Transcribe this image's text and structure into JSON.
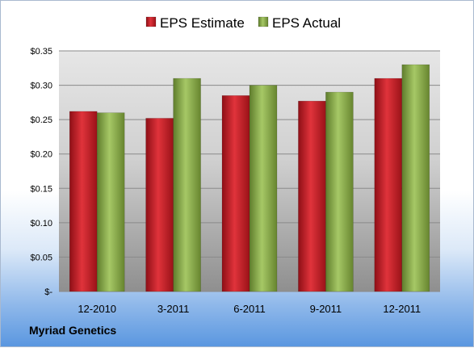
{
  "company_label": "Myriad Genetics",
  "chart_data": {
    "type": "bar",
    "categories": [
      "12-2010",
      "3-2011",
      "6-2011",
      "9-2011",
      "12-2011"
    ],
    "series": [
      {
        "name": "EPS Estimate",
        "values": [
          0.262,
          0.252,
          0.285,
          0.277,
          0.31
        ],
        "color": "#c8202a"
      },
      {
        "name": "EPS Actual",
        "values": [
          0.26,
          0.31,
          0.3,
          0.29,
          0.33
        ],
        "color": "#8db04c"
      }
    ],
    "yticks": [
      "$-",
      "$0.05",
      "$0.10",
      "$0.15",
      "$0.20",
      "$0.25",
      "$0.30",
      "$0.35"
    ],
    "ylim": [
      0,
      0.35
    ],
    "grid": true,
    "legend_position": "top"
  }
}
